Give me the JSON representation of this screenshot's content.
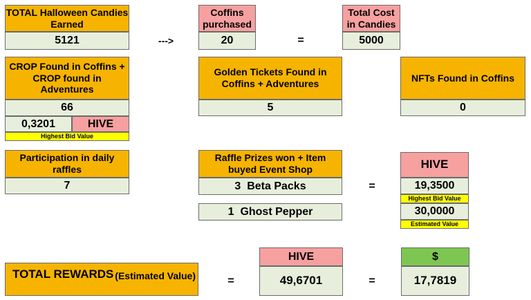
{
  "row1": {
    "candies_header": "TOTAL Halloween Candies Earned",
    "candies_value": "5121",
    "arrow": "--->",
    "coffins_header": "Coffins purchased",
    "coffins_value": "20",
    "equals": "=",
    "cost_header": "Total Cost in Candies",
    "cost_value": "5000"
  },
  "row2": {
    "crop_header": "CROP Found in Coffins + CROP found in Adventures",
    "crop_value": "66",
    "crop_price": "0,3201",
    "crop_currency": "HIVE",
    "crop_price_note": "Highest Bid Value",
    "tickets_header": "Golden Tickets Found in Coffins + Adventures",
    "tickets_value": "5",
    "nfts_header": "NFTs Found in Coffins",
    "nfts_value": "0"
  },
  "row3": {
    "raffles_header": "Participation in daily raffles",
    "raffles_value": "7",
    "prizes_header": "Raffle Prizes won + Item buyed Event Shop",
    "prize1_qty": "3",
    "prize1_name": "Beta Packs",
    "prize2_qty": "1",
    "prize2_name": "Ghost Pepper",
    "equals": "=",
    "hive_header": "HIVE",
    "prize1_hive": "19,3500",
    "prize1_note": "Highest Bid Value",
    "prize2_hive": "30,0000",
    "prize2_note": "Estimated Value"
  },
  "totals": {
    "label": "TOTAL REWARDS",
    "label_note": "(Estimated Value)",
    "equals1": "=",
    "hive_header": "HIVE",
    "hive_value": "49,6701",
    "equals2": "=",
    "usd_header": "$",
    "usd_value": "17,7819"
  },
  "colors": {
    "header": "#f6b400",
    "value": "#e7efdc",
    "hive": "#f7a0a0",
    "usd": "#7dc652",
    "note": "#ffff00"
  }
}
